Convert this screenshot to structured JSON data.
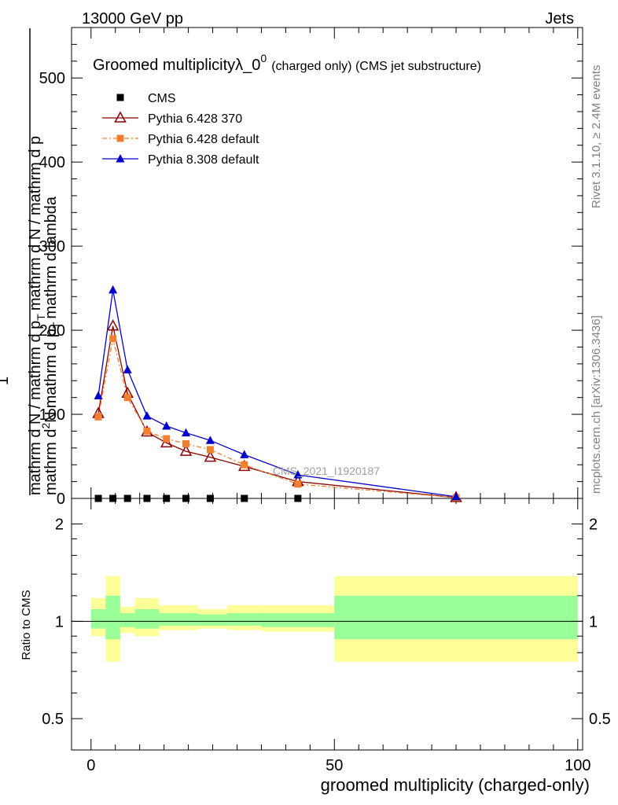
{
  "header": {
    "left": "13000 GeV pp",
    "right": "Jets"
  },
  "side": {
    "rivet": "Rivet 3.1.10, ≥ 2.4M events",
    "mcplots": "mcplots.cern.ch [arXiv:1306.3436]"
  },
  "chart_data": {
    "type": "line",
    "title_main": "Groomed multiplicityλ_0",
    "title_sup": "0",
    "title_tail": "(charged only) (CMS jet substructure)",
    "watermark": "CMS_2021_I1920187",
    "xlabel": "groomed multiplicity (charged-only)",
    "ylabel_num": "1",
    "ylabel_den": "mathrm d N / mathrm d p",
    "ylabel_den_sub": "T",
    "ylabel_den_tail": "mathrm d N / mathrm d p",
    "ylabel_top_num": "mathrm d",
    "ylabel_top_sup": "2",
    "ylabel_top_tail": "N",
    "ylabel_top_den": "mathrm d p",
    "ylabel_top_den_sub": "T",
    "ylabel_top_den_tail": "mathrm d lambda",
    "ratio_ylabel": "Ratio to CMS",
    "xlim": [
      -4,
      101
    ],
    "ylim": [
      0,
      560
    ],
    "yticks": [
      0,
      100,
      200,
      300,
      400,
      500
    ],
    "xticks": [
      0,
      50,
      100
    ],
    "ratio_ylim": [
      0.4,
      2.4
    ],
    "ratio_yticks": [
      0.5,
      1,
      2
    ],
    "legend_position": "top-left",
    "series": [
      {
        "name": "CMS",
        "color": "#000000",
        "marker": "square",
        "x": [
          1.5,
          4.5,
          7.5,
          11.5,
          15.5,
          19.5,
          24.5,
          31.5,
          42.5
        ],
        "y": [
          0,
          0,
          0,
          0,
          0,
          0,
          0,
          0,
          0
        ]
      },
      {
        "name": "Pythia 6.428 370",
        "color": "#8b0000",
        "marker": "open-triangle",
        "x": [
          1.5,
          4.5,
          7.5,
          11.5,
          15.5,
          19.5,
          24.5,
          31.5,
          42.5,
          75
        ],
        "y": [
          101,
          205,
          125,
          79,
          66,
          56,
          49,
          38,
          20,
          1
        ]
      },
      {
        "name": "Pythia 6.428 default",
        "color": "#f08030",
        "marker": "square",
        "x": [
          1.5,
          4.5,
          7.5,
          11.5,
          15.5,
          19.5,
          24.5,
          31.5,
          42.5,
          75
        ],
        "y": [
          97,
          190,
          120,
          80,
          71,
          65,
          58,
          40,
          17,
          1
        ]
      },
      {
        "name": "Pythia 8.308 default",
        "color": "#0000cc",
        "marker": "triangle",
        "x": [
          1.5,
          4.5,
          7.5,
          11.5,
          15.5,
          19.5,
          24.5,
          31.5,
          42.5,
          75
        ],
        "y": [
          122,
          248,
          153,
          98,
          86,
          78,
          69,
          52,
          28,
          2
        ]
      }
    ],
    "ratio_bands": [
      {
        "x0": 0,
        "x1": 3,
        "yellow": [
          0.9,
          1.18
        ],
        "green": [
          0.95,
          1.09
        ]
      },
      {
        "x0": 3,
        "x1": 6,
        "yellow": [
          0.75,
          1.38
        ],
        "green": [
          0.88,
          1.2
        ]
      },
      {
        "x0": 6,
        "x1": 9,
        "yellow": [
          0.92,
          1.11
        ],
        "green": [
          0.96,
          1.06
        ]
      },
      {
        "x0": 9,
        "x1": 14,
        "yellow": [
          0.9,
          1.18
        ],
        "green": [
          0.95,
          1.09
        ]
      },
      {
        "x0": 14,
        "x1": 22,
        "yellow": [
          0.94,
          1.12
        ],
        "green": [
          0.97,
          1.06
        ]
      },
      {
        "x0": 22,
        "x1": 28,
        "yellow": [
          0.95,
          1.09
        ],
        "green": [
          0.97,
          1.05
        ]
      },
      {
        "x0": 28,
        "x1": 35,
        "yellow": [
          0.94,
          1.12
        ],
        "green": [
          0.97,
          1.06
        ]
      },
      {
        "x0": 35,
        "x1": 50,
        "yellow": [
          0.93,
          1.12
        ],
        "green": [
          0.96,
          1.06
        ]
      },
      {
        "x0": 50,
        "x1": 100,
        "yellow": [
          0.75,
          1.38
        ],
        "green": [
          0.88,
          1.2
        ]
      }
    ]
  }
}
